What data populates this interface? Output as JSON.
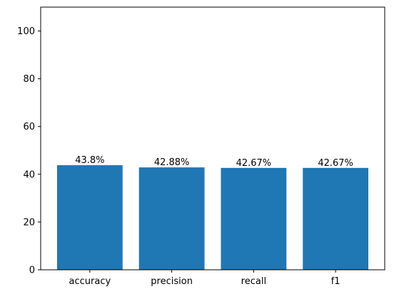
{
  "chart_data": {
    "type": "bar",
    "categories": [
      "accuracy",
      "precision",
      "recall",
      "f1"
    ],
    "values": [
      43.8,
      42.88,
      42.67,
      42.67
    ],
    "data_labels": [
      "43.8%",
      "42.88%",
      "42.67%",
      "42.67%"
    ],
    "title": "",
    "xlabel": "",
    "ylabel": "",
    "ylim": [
      0,
      110
    ],
    "yticks": [
      0,
      20,
      40,
      60,
      80,
      100
    ],
    "grid": false,
    "bar_color": "#1f77b4",
    "text_color": "#000000",
    "axis_color": "#000000"
  }
}
